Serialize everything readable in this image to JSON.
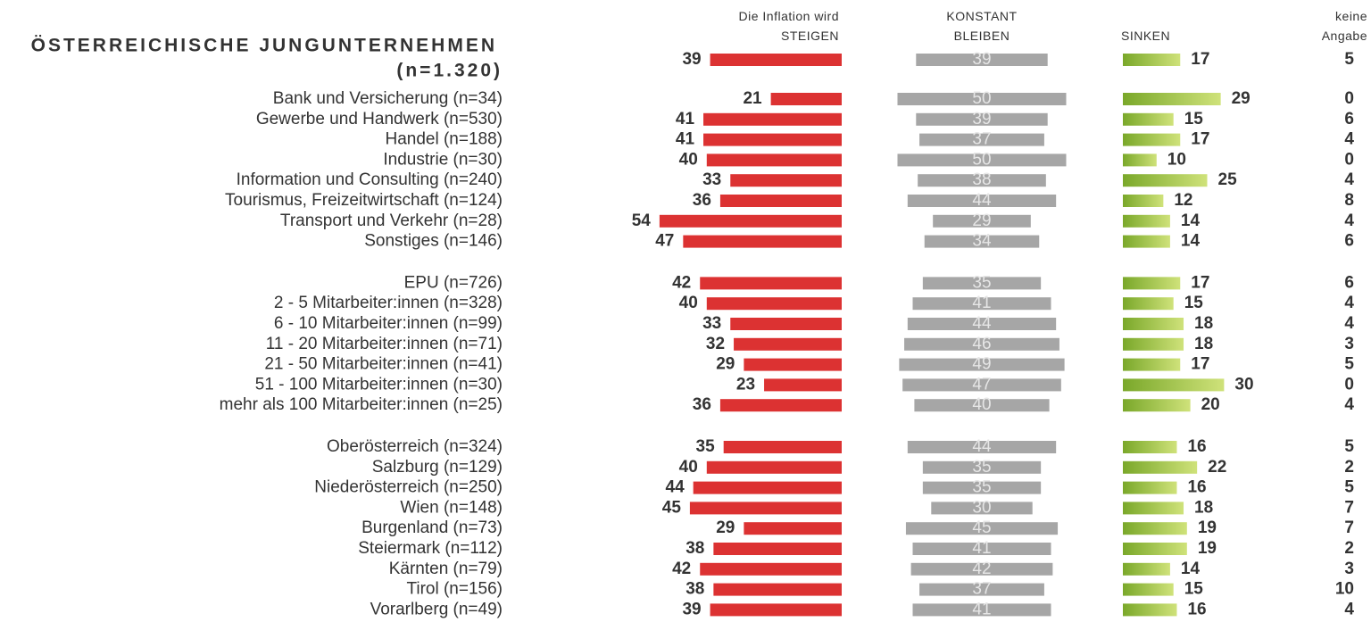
{
  "chart_data": {
    "type": "bar",
    "title": "ÖSTERREICHISCHE JUNGUNTERNEHMEN",
    "categories": [
      "(n=1.320)",
      "Bank und Versicherung (n=34)",
      "Gewerbe und Handwerk (n=530)",
      "Handel (n=188)",
      "Industrie (n=30)",
      "Information und Consulting (n=240)",
      "Tourismus, Freizeitwirtschaft (n=124)",
      "Transport und Verkehr (n=28)",
      "Sonstiges (n=146)",
      "EPU (n=726)",
      "2 - 5 Mitarbeiter:innen (n=328)",
      "6 - 10 Mitarbeiter:innen (n=99)",
      "11 - 20 Mitarbeiter:innen (n=71)",
      "21 - 50 Mitarbeiter:innen (n=41)",
      "51 - 100 Mitarbeiter:innen (n=30)",
      "mehr als 100 Mitarbeiter:innen (n=25)",
      "Oberösterreich (n=324)",
      "Salzburg (n=129)",
      "Niederösterreich (n=250)",
      "Wien (n=148)",
      "Burgenland (n=73)",
      "Steiermark (n=112)",
      "Kärnten (n=79)",
      "Tirol (n=156)",
      "Vorarlberg (n=49)"
    ],
    "series": [
      {
        "name": "Die Inflation wird\nSTEIGEN",
        "color": "#dc3232",
        "values": [
          39,
          21,
          41,
          41,
          40,
          33,
          36,
          54,
          47,
          42,
          40,
          33,
          32,
          29,
          23,
          36,
          35,
          40,
          44,
          45,
          29,
          38,
          42,
          38,
          39
        ]
      },
      {
        "name": "KONSTANT\nBLEIBEN",
        "color": "#a6a6a6",
        "values": [
          39,
          50,
          39,
          37,
          50,
          38,
          44,
          29,
          34,
          35,
          41,
          44,
          46,
          49,
          47,
          40,
          44,
          35,
          35,
          30,
          45,
          41,
          42,
          37,
          41
        ]
      },
      {
        "name": "SINKEN",
        "color": "#8db33a",
        "values": [
          17,
          29,
          15,
          17,
          10,
          25,
          12,
          14,
          14,
          17,
          15,
          18,
          18,
          17,
          30,
          20,
          16,
          22,
          16,
          18,
          19,
          19,
          14,
          15,
          16
        ]
      },
      {
        "name": "keine\nAngabe",
        "values": [
          5,
          0,
          6,
          4,
          0,
          4,
          8,
          4,
          6,
          6,
          4,
          4,
          3,
          5,
          0,
          4,
          5,
          2,
          5,
          7,
          7,
          2,
          3,
          10,
          4
        ]
      }
    ]
  }
}
